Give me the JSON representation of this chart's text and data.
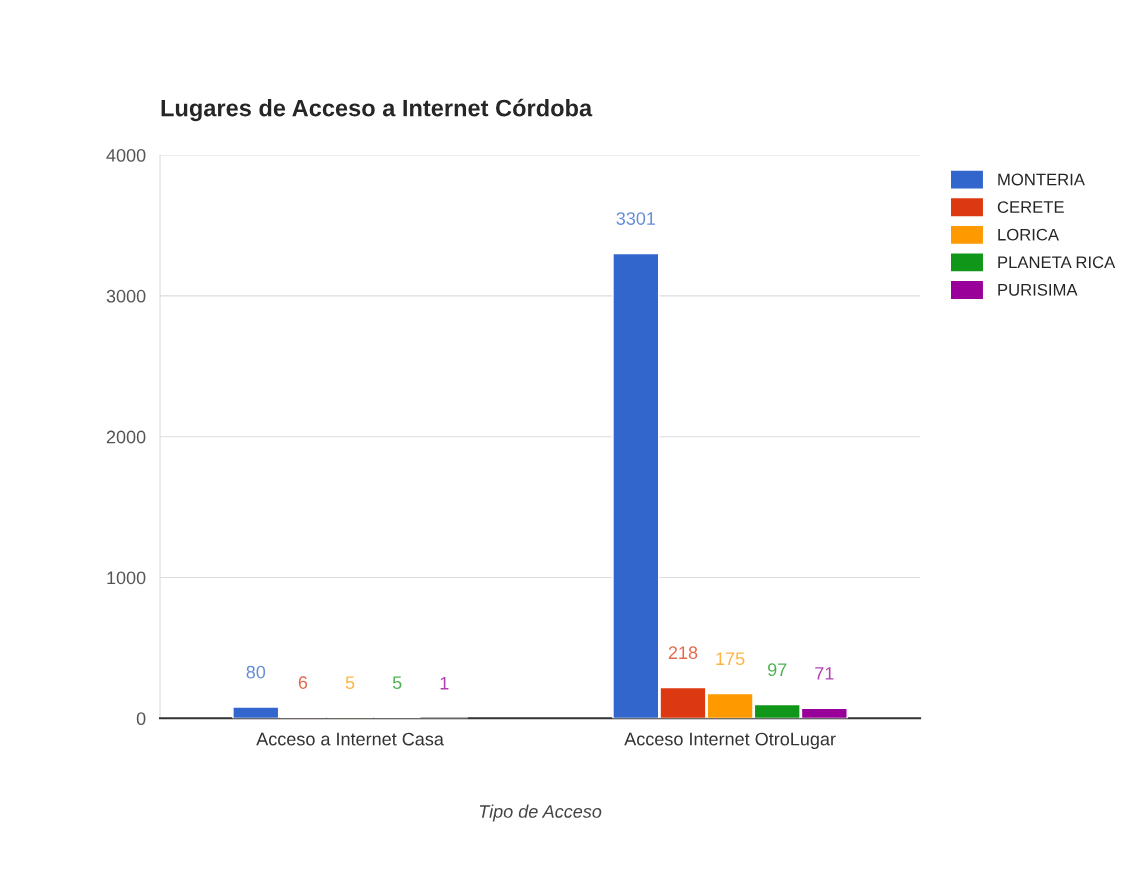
{
  "chart_data": {
    "type": "bar",
    "title": "Lugares de Acceso a Internet Córdoba",
    "xlabel": "Tipo de Acceso",
    "categories": [
      "Acceso a Internet Casa",
      "Acceso Internet OtroLugar"
    ],
    "series": [
      {
        "name": "MONTERIA",
        "color": "#3366cc",
        "values": [
          80,
          3301
        ]
      },
      {
        "name": "CERETE",
        "color": "#dc3912",
        "values": [
          6,
          218
        ]
      },
      {
        "name": "LORICA",
        "color": "#ff9900",
        "values": [
          5,
          175
        ]
      },
      {
        "name": "PLANETA RICA",
        "color": "#109618",
        "values": [
          5,
          97
        ]
      },
      {
        "name": "PURISIMA",
        "color": "#990099",
        "values": [
          1,
          71
        ]
      }
    ],
    "ylim": [
      0,
      4000
    ],
    "yticks": [
      0,
      1000,
      2000,
      3000,
      4000
    ],
    "grid": "y",
    "legend": "right",
    "data_labels": true
  }
}
